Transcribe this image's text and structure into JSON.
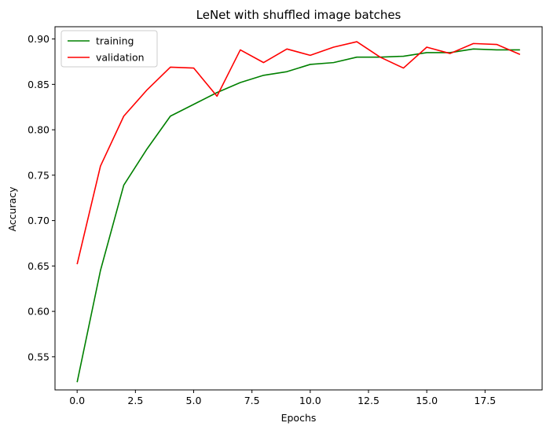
{
  "chart_data": {
    "type": "line",
    "title": "LeNet with shuffled image batches",
    "xlabel": "Epochs",
    "ylabel": "Accuracy",
    "xlim": [
      -0.95,
      19.95
    ],
    "ylim": [
      0.5135,
      0.9135
    ],
    "xticks": [
      0.0,
      2.5,
      5.0,
      7.5,
      10.0,
      12.5,
      15.0,
      17.5
    ],
    "xtick_labels": [
      "0.0",
      "2.5",
      "5.0",
      "7.5",
      "10.0",
      "12.5",
      "15.0",
      "17.5"
    ],
    "yticks": [
      0.55,
      0.6,
      0.65,
      0.7,
      0.75,
      0.8,
      0.85,
      0.9
    ],
    "ytick_labels": [
      "0.55",
      "0.60",
      "0.65",
      "0.70",
      "0.75",
      "0.80",
      "0.85",
      "0.90"
    ],
    "grid": false,
    "legend": "top-left",
    "x": [
      0,
      1,
      2,
      3,
      4,
      5,
      6,
      7,
      8,
      9,
      10,
      11,
      12,
      13,
      14,
      15,
      16,
      17,
      18,
      19
    ],
    "series": [
      {
        "name": "training",
        "color": "#008000",
        "values": [
          0.522,
          0.645,
          0.739,
          0.779,
          0.815,
          0.828,
          0.841,
          0.852,
          0.86,
          0.864,
          0.872,
          0.874,
          0.88,
          0.88,
          0.881,
          0.885,
          0.885,
          0.889,
          0.888,
          0.888
        ]
      },
      {
        "name": "validation",
        "color": "#ff0000",
        "values": [
          0.652,
          0.76,
          0.815,
          0.844,
          0.869,
          0.868,
          0.837,
          0.888,
          0.874,
          0.889,
          0.882,
          0.891,
          0.897,
          0.88,
          0.868,
          0.891,
          0.884,
          0.895,
          0.894,
          0.883
        ]
      }
    ]
  }
}
